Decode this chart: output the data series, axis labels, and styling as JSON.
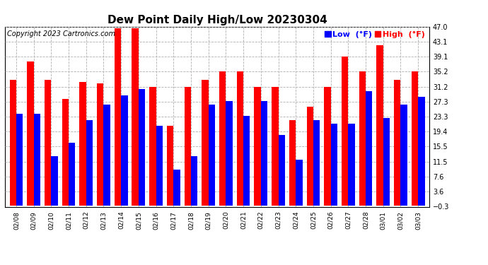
{
  "title": "Dew Point Daily High/Low 20230304",
  "copyright": "Copyright 2023 Cartronics.com",
  "legend_low": "Low  (°F)",
  "legend_high": "High  (°F)",
  "dates": [
    "02/08",
    "02/09",
    "02/10",
    "02/11",
    "02/12",
    "02/13",
    "02/14",
    "02/15",
    "02/16",
    "02/17",
    "02/18",
    "02/19",
    "02/20",
    "02/21",
    "02/22",
    "02/23",
    "02/24",
    "02/25",
    "02/26",
    "02/27",
    "02/28",
    "03/01",
    "03/02",
    "03/03"
  ],
  "high": [
    33.0,
    37.9,
    33.0,
    28.0,
    32.5,
    32.0,
    46.5,
    46.5,
    31.2,
    21.0,
    31.2,
    33.0,
    35.2,
    35.2,
    31.2,
    31.2,
    22.5,
    26.0,
    31.2,
    39.1,
    35.2,
    42.0,
    33.0,
    35.2
  ],
  "low": [
    24.0,
    24.0,
    13.0,
    16.5,
    22.5,
    26.5,
    29.0,
    30.5,
    21.0,
    9.5,
    13.0,
    26.5,
    27.5,
    23.5,
    27.5,
    18.5,
    12.0,
    22.5,
    21.5,
    21.5,
    30.0,
    23.0,
    26.5,
    28.5
  ],
  "yticks": [
    -0.3,
    3.6,
    7.6,
    11.5,
    15.5,
    19.4,
    23.3,
    27.3,
    31.2,
    35.2,
    39.1,
    43.1,
    47.0
  ],
  "ymin": -0.3,
  "ymax": 47.0,
  "bar_width": 0.38,
  "high_color": "#ff0000",
  "low_color": "#0000ff",
  "bg_color": "#ffffff",
  "grid_color": "#b0b0b0",
  "title_fontsize": 11,
  "copyright_fontsize": 7,
  "legend_fontsize": 8,
  "tick_fontsize": 7,
  "label_fontsize": 6.5
}
